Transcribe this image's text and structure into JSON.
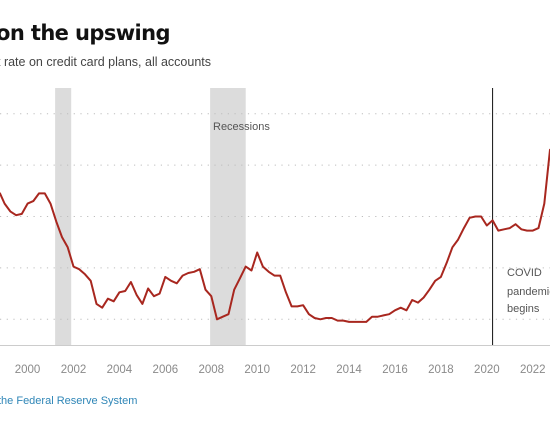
{
  "header": {
    "title": "on the upswing",
    "subtitle": "t rate on credit card plans, all accounts"
  },
  "footer": {
    "source": "the Federal Reserve System"
  },
  "colors": {
    "line": "#a8271f",
    "recession": "#dcdcdc",
    "grid": "#bdbdbd",
    "axis": "#cccccc"
  },
  "annotations": {
    "recessions": "Recessions",
    "covid": [
      "COVID",
      "pandemic",
      "begins"
    ]
  },
  "chart_data": {
    "type": "line",
    "x_tick_labels": [
      "2000",
      "2002",
      "2004",
      "2006",
      "2008",
      "2010",
      "2012",
      "2014",
      "2016",
      "2018",
      "2020",
      "2022"
    ],
    "x_ticks": [
      2000,
      2002,
      2004,
      2006,
      2008,
      2010,
      2012,
      2014,
      2016,
      2018,
      2020,
      2022
    ],
    "xlim": [
      1998.8,
      2022.75
    ],
    "ylim": [
      11,
      21
    ],
    "y_gridlines": [
      12,
      14,
      16,
      18,
      20
    ],
    "grid": true,
    "recessions": [
      [
        2001.2,
        2001.9
      ],
      [
        2007.95,
        2009.5
      ]
    ],
    "events": [
      {
        "x": 2020.25,
        "label": "COVID pandemic begins"
      }
    ],
    "series": [
      {
        "x": [
          1998.8,
          1999.0,
          1999.25,
          1999.5,
          1999.75,
          2000.0,
          2000.25,
          2000.5,
          2000.75,
          2001.0,
          2001.25,
          2001.5,
          2001.75,
          2002.0,
          2002.25,
          2002.5,
          2002.75,
          2003.0,
          2003.25,
          2003.5,
          2003.75,
          2004.0,
          2004.25,
          2004.5,
          2004.75,
          2005.0,
          2005.25,
          2005.5,
          2005.75,
          2006.0,
          2006.25,
          2006.5,
          2006.75,
          2007.0,
          2007.25,
          2007.5,
          2007.75,
          2008.0,
          2008.25,
          2008.5,
          2008.75,
          2009.0,
          2009.25,
          2009.5,
          2009.75,
          2010.0,
          2010.25,
          2010.5,
          2010.75,
          2011.0,
          2011.25,
          2011.5,
          2011.75,
          2012.0,
          2012.25,
          2012.5,
          2012.75,
          2013.0,
          2013.25,
          2013.5,
          2013.75,
          2014.0,
          2014.25,
          2014.5,
          2014.75,
          2015.0,
          2015.25,
          2015.5,
          2015.75,
          2016.0,
          2016.25,
          2016.5,
          2016.75,
          2017.0,
          2017.25,
          2017.5,
          2017.75,
          2018.0,
          2018.25,
          2018.5,
          2018.75,
          2019.0,
          2019.25,
          2019.5,
          2019.75,
          2020.0,
          2020.25,
          2020.5,
          2020.75,
          2021.0,
          2021.25,
          2021.5,
          2021.75,
          2022.0,
          2022.25,
          2022.5,
          2022.75
        ],
        "values": [
          16.9,
          16.5,
          16.2,
          16.05,
          16.1,
          16.5,
          16.6,
          16.9,
          16.9,
          16.5,
          15.8,
          15.2,
          14.8,
          14.05,
          13.95,
          13.75,
          13.5,
          12.6,
          12.45,
          12.8,
          12.7,
          13.05,
          13.1,
          13.45,
          12.95,
          12.6,
          13.2,
          12.9,
          13.0,
          13.65,
          13.5,
          13.4,
          13.7,
          13.8,
          13.85,
          13.95,
          13.15,
          12.9,
          12.0,
          12.1,
          12.2,
          13.15,
          13.6,
          14.05,
          13.9,
          14.6,
          14.05,
          13.85,
          13.7,
          13.7,
          13.05,
          12.5,
          12.5,
          12.55,
          12.2,
          12.05,
          12.0,
          12.05,
          12.05,
          11.95,
          11.95,
          11.9,
          11.9,
          11.9,
          11.9,
          12.1,
          12.1,
          12.15,
          12.2,
          12.35,
          12.45,
          12.35,
          12.75,
          12.65,
          12.85,
          13.15,
          13.5,
          13.65,
          14.2,
          14.8,
          15.1,
          15.55,
          15.95,
          16.0,
          16.0,
          15.65,
          15.85,
          15.45,
          15.5,
          15.55,
          15.7,
          15.5,
          15.45,
          15.45,
          15.55,
          16.5,
          18.6
        ]
      }
    ]
  }
}
